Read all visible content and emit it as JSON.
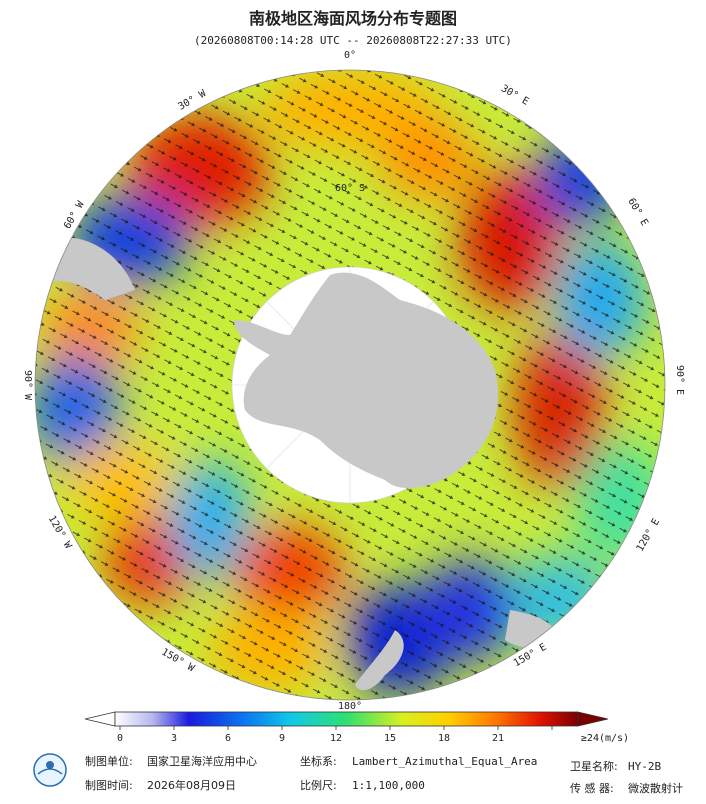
{
  "title": "南极地区海面风场分布专题图",
  "subtitle": "(20260808T00:14:28 UTC -- 20260808T22:27:33 UTC)",
  "map": {
    "longitude_labels": [
      "0°",
      "30° E",
      "60° E",
      "90° E",
      "120° E",
      "150° E",
      "180°",
      "150° W",
      "120° W",
      "90° W",
      "60° W",
      "30° W"
    ],
    "latitude_labels": [
      "60° S"
    ]
  },
  "colorbar": {
    "ticks": [
      0,
      3,
      6,
      9,
      12,
      15,
      18,
      21
    ],
    "max": {
      "value": 24,
      "label": "≥24(m/s)"
    }
  },
  "footer": {
    "producer_label": "制图单位:",
    "producer": "国家卫星海洋应用中心",
    "date_label": "制图时间:",
    "date": "2026年08月09日",
    "crs_label": "坐标系:",
    "crs": "Lambert_Azimuthal_Equal_Area",
    "scale_label": "比例尺:",
    "scale": "1:1,100,000",
    "satellite_label": "卫星名称:",
    "satellite": "HY-2B",
    "sensor_label": "传 感 器:",
    "sensor": "微波散射计"
  }
}
